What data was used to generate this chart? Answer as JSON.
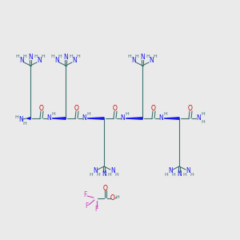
{
  "bg_color": "#eaeaea",
  "teal": "#3d7070",
  "blue": "#1a1aee",
  "red": "#cc0000",
  "magenta": "#cc44bb",
  "font_size": 5.5,
  "font_size_small": 4.5,
  "figsize": [
    3.0,
    3.0
  ],
  "dpi": 100,
  "xlim": [
    0,
    300
  ],
  "ylim": [
    0,
    300
  ]
}
